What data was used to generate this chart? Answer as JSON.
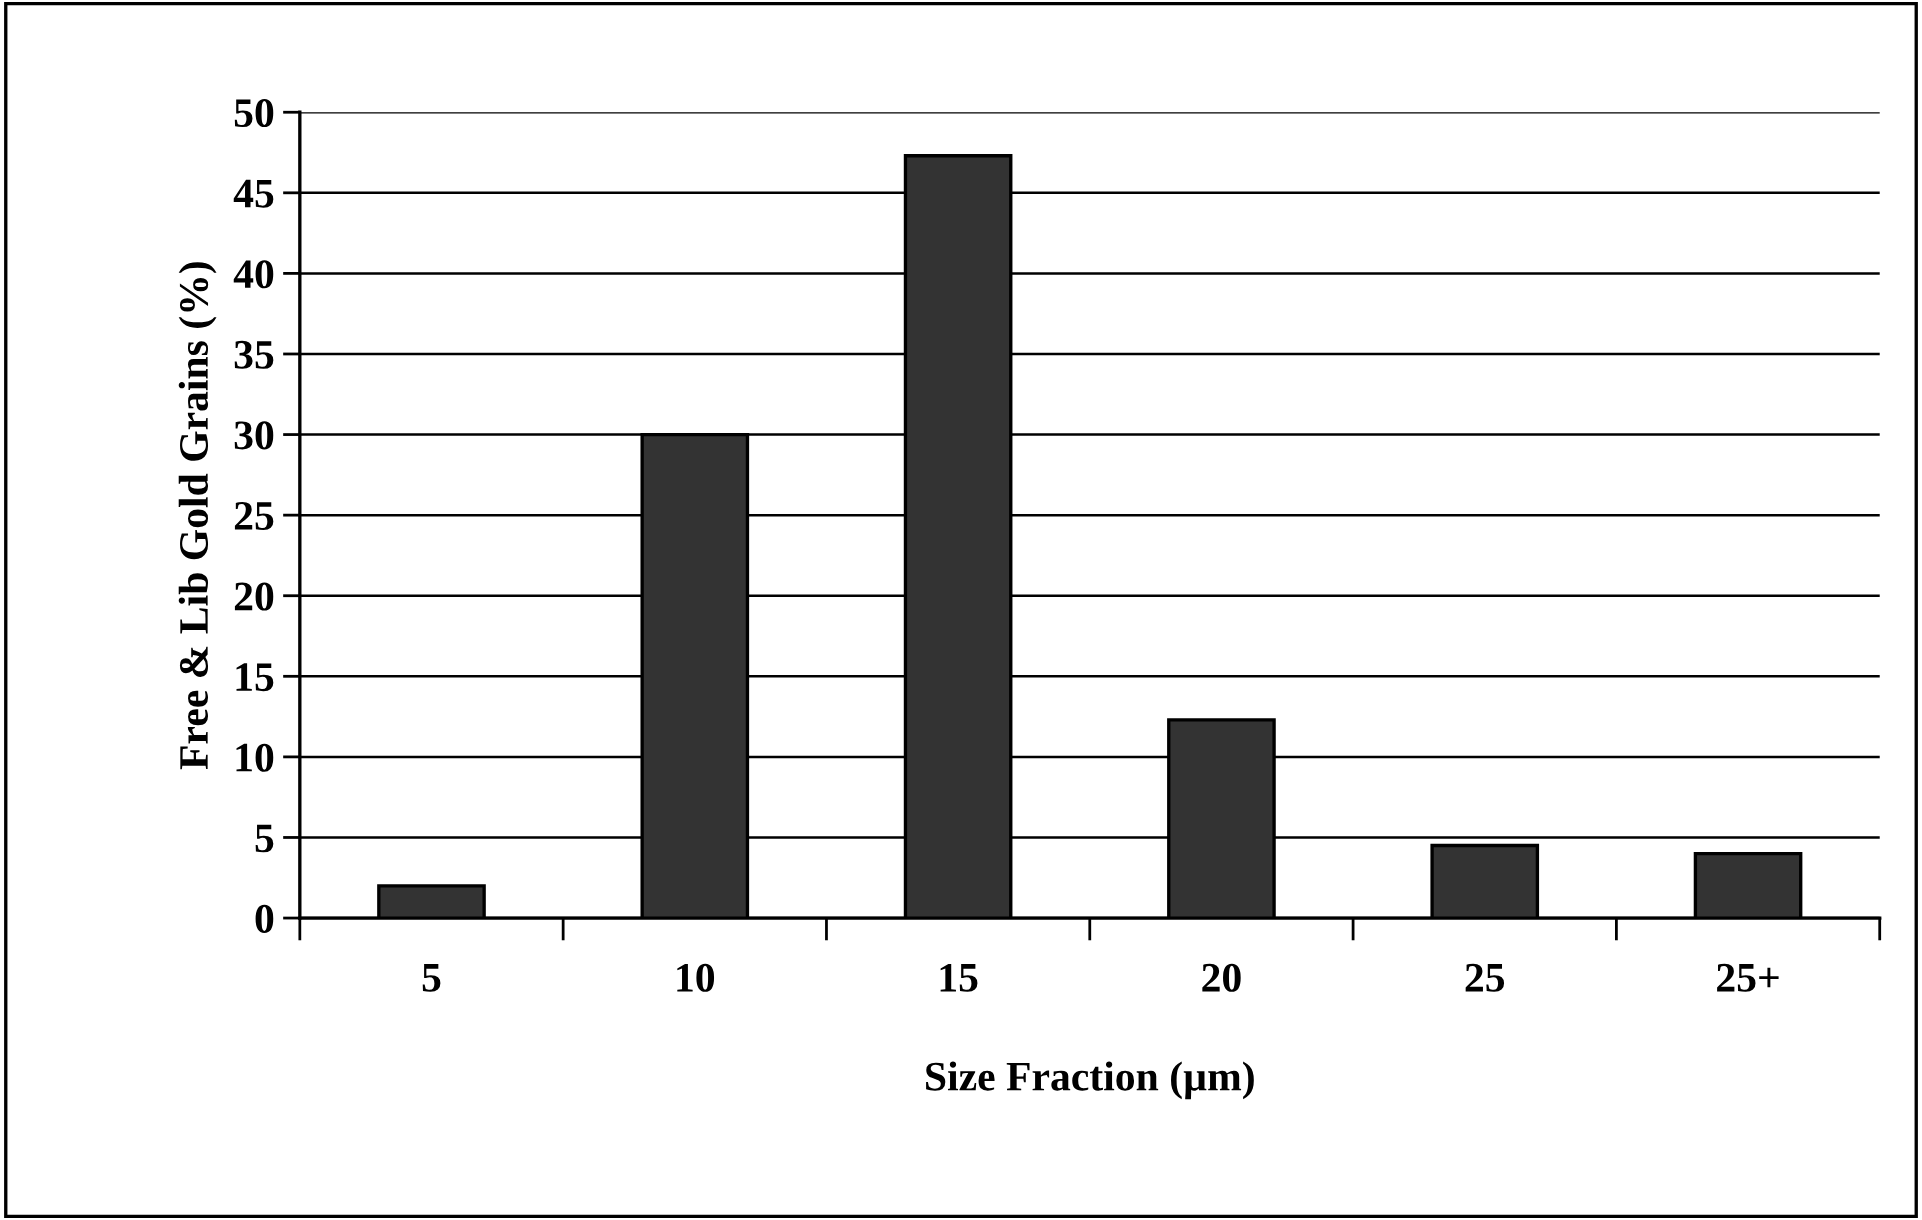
{
  "chart_data": {
    "type": "bar",
    "xlabel": "Size Fraction (µm)",
    "ylabel": "Free & Lib Gold Grains (%)",
    "categories": [
      "5",
      "10",
      "15",
      "20",
      "25",
      "25+"
    ],
    "values": [
      2.0,
      30.0,
      47.3,
      12.3,
      4.5,
      4.0
    ],
    "color": "#333333",
    "ylim": [
      0,
      50
    ],
    "yticks": [
      0,
      5,
      10,
      15,
      20,
      25,
      30,
      35,
      40,
      45,
      50
    ],
    "grid": "y",
    "legend": false
  }
}
